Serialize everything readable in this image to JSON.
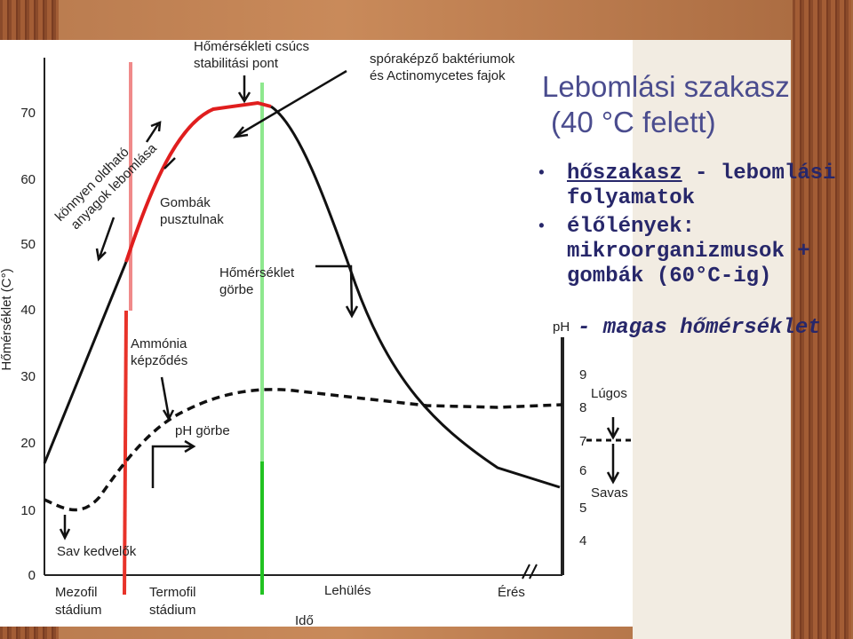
{
  "slide": {
    "title": [
      "Lebomlási szakasz",
      "(40 °C felett)"
    ],
    "bullets": [
      {
        "emphasis": "hőszakasz",
        "text": " - lebomlási folyamatok"
      },
      {
        "text": "élőlények: mikroorganizmusok + gombák (60°C-ig)"
      }
    ],
    "sub_bullet": "- magas hőmérséklet"
  },
  "figure": {
    "y_axis_title": "Hőmérséklet (C°)",
    "y_ticks": [
      "0",
      "10",
      "20",
      "30",
      "40",
      "50",
      "60",
      "70"
    ],
    "ph_axis_title": "pH",
    "ph_ticks": [
      "4",
      "5",
      "6",
      "7",
      "8",
      "9"
    ],
    "x_axis_title": "Idő",
    "stages": [
      [
        "Mezofil",
        "stádium"
      ],
      [
        "Termofil",
        "stádium"
      ],
      [
        "Lehülés"
      ],
      [
        "Érés"
      ]
    ],
    "annotations": {
      "peak": [
        "Hőmérsékleti csúcs",
        "stabilitási pont"
      ],
      "spore": [
        "spóraképző baktériumok",
        "és Actinomycetes fajok"
      ],
      "soluble": [
        "könnyen oldható",
        "anyagok lebomlása"
      ],
      "fungi": [
        "Gombák",
        "pusztulnak"
      ],
      "temp_curve": [
        "Hőmérséklet",
        "görbe"
      ],
      "ammonia": [
        "Ammónia",
        "képződés"
      ],
      "ph_curve": "pH görbe",
      "acid": "Sav kedvelők",
      "alkaline": "Lúgos",
      "acidic": "Savas"
    }
  }
}
